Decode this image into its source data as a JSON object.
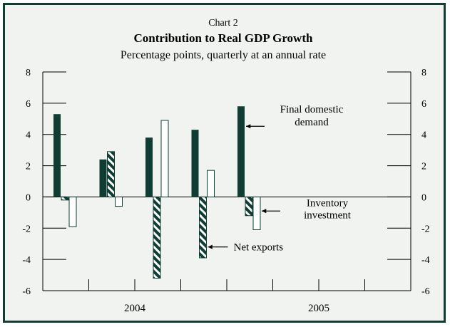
{
  "chart_data": {
    "type": "bar",
    "header": "Chart 2",
    "title": "Contribution to Real GDP Growth",
    "subtitle": "Percentage points, quarterly at an annual rate",
    "ylim": [
      -6,
      8
    ],
    "yticks": [
      8,
      6,
      4,
      2,
      0,
      -2,
      -4,
      -6
    ],
    "xlabels": [
      "2004",
      "2005"
    ],
    "quarter_periods": 8,
    "series": [
      {
        "key": "final",
        "values": [
          5.3,
          2.4,
          3.8,
          4.3,
          5.8,
          null,
          null,
          null
        ],
        "fill": "#0f3d33"
      },
      {
        "key": "inventory",
        "values": [
          -0.2,
          2.9,
          -5.2,
          -3.9,
          -1.2,
          null,
          null,
          null
        ],
        "fill": "hatch"
      },
      {
        "key": "net",
        "values": [
          -1.9,
          -0.6,
          4.9,
          1.7,
          -2.1,
          null,
          null,
          null
        ],
        "fill": "#ffffff"
      }
    ],
    "annotations": [
      {
        "target": "final",
        "lines": [
          "Final domestic",
          "demand"
        ]
      },
      {
        "target": "inventory",
        "lines": [
          "Inventory",
          "investment"
        ]
      },
      {
        "target": "net",
        "lines": [
          "Net exports"
        ]
      }
    ],
    "colors": {
      "frame": "#0f3d33",
      "background": "#f1f3f1",
      "dark": "#0f3d33",
      "hatch_light": "#ffffff"
    }
  }
}
